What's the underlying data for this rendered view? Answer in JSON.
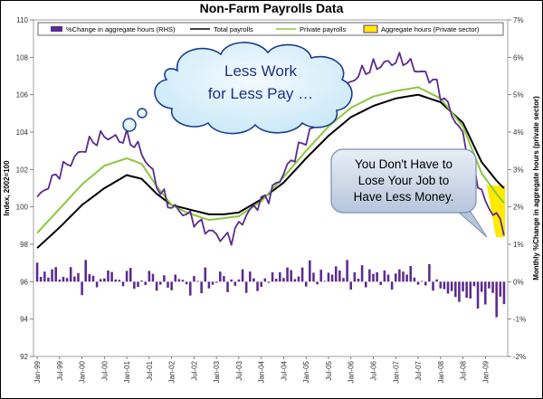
{
  "chart_data": {
    "type": "bar+line",
    "title": "Non-Farm Payrolls Data",
    "ylabel_left": "Index, 2002=100",
    "ylabel_right": "Monthly %Change in aggregate hours (private sector)",
    "ylim_left": [
      92,
      110
    ],
    "yticks_left": [
      "92",
      "94",
      "96",
      "98",
      "100",
      "102",
      "104",
      "106",
      "108",
      "110"
    ],
    "ylim_right": [
      -2,
      7
    ],
    "yticks_right": [
      "-2%",
      "-1%",
      "0%",
      "1%",
      "2%",
      "3%",
      "4%",
      "5%",
      "6%",
      "7%"
    ],
    "x_start": "1999-01",
    "x_months": 126,
    "x_ticks": [
      "Jan-99",
      "Jul-99",
      "Jan-00",
      "Jul-00",
      "Jan-01",
      "Jul-01",
      "Jan-02",
      "Jul-02",
      "Jan-03",
      "Jul-03",
      "Jan-04",
      "Jul-04",
      "Jan-05",
      "Jul-05",
      "Jan-06",
      "Jul-06",
      "Jan-07",
      "Jul-07",
      "Jan-08",
      "Jul-08",
      "Jan-09"
    ],
    "legend": [
      {
        "name": "%Change in aggregate hours (RHS)",
        "color": "#5b2c8f",
        "kind": "bar"
      },
      {
        "name": "Total payrolls",
        "color": "#000000",
        "kind": "line"
      },
      {
        "name": "Private payrolls",
        "color": "#8dc63f",
        "kind": "line"
      },
      {
        "name": "Aggregate hours (Private sector)",
        "color": "#ffea00",
        "kind": "box"
      }
    ],
    "series": [
      {
        "name": "Total payrolls",
        "color": "#000000",
        "anchors": [
          [
            0,
            97.8
          ],
          [
            6,
            98.9
          ],
          [
            12,
            100.1
          ],
          [
            18,
            101.0
          ],
          [
            24,
            101.7
          ],
          [
            28,
            101.5
          ],
          [
            32,
            100.7
          ],
          [
            36,
            100.1
          ],
          [
            40,
            99.9
          ],
          [
            46,
            99.6
          ],
          [
            50,
            99.6
          ],
          [
            54,
            99.7
          ],
          [
            60,
            100.4
          ],
          [
            66,
            101.3
          ],
          [
            72,
            102.6
          ],
          [
            78,
            103.8
          ],
          [
            84,
            104.8
          ],
          [
            90,
            105.4
          ],
          [
            96,
            105.8
          ],
          [
            102,
            106.0
          ],
          [
            108,
            105.6
          ],
          [
            114,
            104.5
          ],
          [
            119,
            102.4
          ],
          [
            123,
            101.4
          ],
          [
            125,
            101.0
          ]
        ]
      },
      {
        "name": "Private payrolls",
        "color": "#8dc63f",
        "anchors": [
          [
            0,
            98.6
          ],
          [
            6,
            99.9
          ],
          [
            12,
            101.2
          ],
          [
            18,
            102.2
          ],
          [
            24,
            102.6
          ],
          [
            28,
            102.3
          ],
          [
            32,
            101.1
          ],
          [
            36,
            100.1
          ],
          [
            40,
            99.7
          ],
          [
            46,
            99.3
          ],
          [
            50,
            99.4
          ],
          [
            54,
            99.5
          ],
          [
            60,
            100.3
          ],
          [
            66,
            101.6
          ],
          [
            72,
            103.0
          ],
          [
            78,
            104.3
          ],
          [
            84,
            105.3
          ],
          [
            90,
            105.9
          ],
          [
            96,
            106.2
          ],
          [
            102,
            106.4
          ],
          [
            108,
            105.8
          ],
          [
            114,
            104.3
          ],
          [
            119,
            101.8
          ],
          [
            123,
            100.7
          ],
          [
            125,
            100.2
          ]
        ]
      },
      {
        "name": "Aggregate hours (Private sector)",
        "color": "#5b2c8f",
        "anchors": [
          [
            0,
            100.4
          ],
          [
            3,
            101.2
          ],
          [
            6,
            101.9
          ],
          [
            10,
            102.6
          ],
          [
            14,
            103.4
          ],
          [
            18,
            103.8
          ],
          [
            22,
            103.6
          ],
          [
            24,
            103.7
          ],
          [
            27,
            103.2
          ],
          [
            30,
            102.2
          ],
          [
            33,
            100.8
          ],
          [
            36,
            100.0
          ],
          [
            40,
            99.6
          ],
          [
            44,
            99.0
          ],
          [
            47,
            98.6
          ],
          [
            50,
            98.3
          ],
          [
            52,
            98.4
          ],
          [
            55,
            99.3
          ],
          [
            58,
            100.0
          ],
          [
            62,
            100.6
          ],
          [
            66,
            101.8
          ],
          [
            70,
            103.1
          ],
          [
            74,
            104.2
          ],
          [
            78,
            105.2
          ],
          [
            82,
            106.2
          ],
          [
            86,
            107.1
          ],
          [
            90,
            107.5
          ],
          [
            94,
            107.7
          ],
          [
            98,
            107.9
          ],
          [
            102,
            107.3
          ],
          [
            106,
            106.8
          ],
          [
            110,
            105.4
          ],
          [
            114,
            103.8
          ],
          [
            117,
            102.0
          ],
          [
            120,
            100.2
          ],
          [
            123,
            99.5
          ],
          [
            125,
            98.9
          ]
        ]
      }
    ],
    "bars_pct": [
      0.51,
      0.13,
      0.27,
      0.11,
      0.33,
      0.39,
      0.06,
      0.13,
      0.1,
      0.39,
      0.14,
      0.23,
      -0.36,
      0.58,
      0.2,
      0.16,
      -0.15,
      0.07,
      0.09,
      0.3,
      0.26,
      0.06,
      0.05,
      -0.12,
      0.29,
      0.37,
      -0.19,
      -0.14,
      0.03,
      -0.09,
      0.29,
      0.21,
      -0.24,
      -0.08,
      0.17,
      -0.16,
      -0.23,
      0.19,
      0.07,
      0.05,
      -0.07,
      -0.37,
      0.15,
      0.02,
      -0.31,
      0.38,
      -0.18,
      -0.08,
      -0.03,
      0.27,
      0.15,
      -0.28,
      0.06,
      -0.11,
      0.06,
      0.33,
      -0.3,
      0.27,
      0.09,
      -0.25,
      -0.14,
      0.09,
      -0.03,
      0.25,
      0.08,
      0.25,
      0.1,
      0.38,
      0.31,
      0.07,
      0.14,
      0.38,
      -0.13,
      0.57,
      0.24,
      -0.07,
      0.32,
      0.02,
      0.24,
      0.19,
      0.41,
      0.3,
      0.1,
      0.58,
      -0.21,
      0.25,
      0.08,
      0.44,
      -0.15,
      0.33,
      0.21,
      0.25,
      -0.09,
      0.3,
      0.19,
      -0.21,
      0.22,
      0.33,
      0.27,
      0.19,
      0.42,
      0.11,
      -0.08,
      0.02,
      -0.1,
      0.47,
      -0.24,
      0.06,
      -0.18,
      -0.2,
      -0.32,
      -0.25,
      -0.41,
      -0.54,
      -0.26,
      -0.43,
      -0.45,
      -0.12,
      -0.72,
      -0.27,
      -0.61,
      -0.18,
      -0.3,
      -0.95,
      -0.4,
      -0.6
    ]
  },
  "callouts": {
    "cloud": [
      "Less Work",
      "for Less Pay …"
    ],
    "box": [
      "You Don't Have to",
      "Lose Your Job to",
      "Have Less Money."
    ]
  }
}
